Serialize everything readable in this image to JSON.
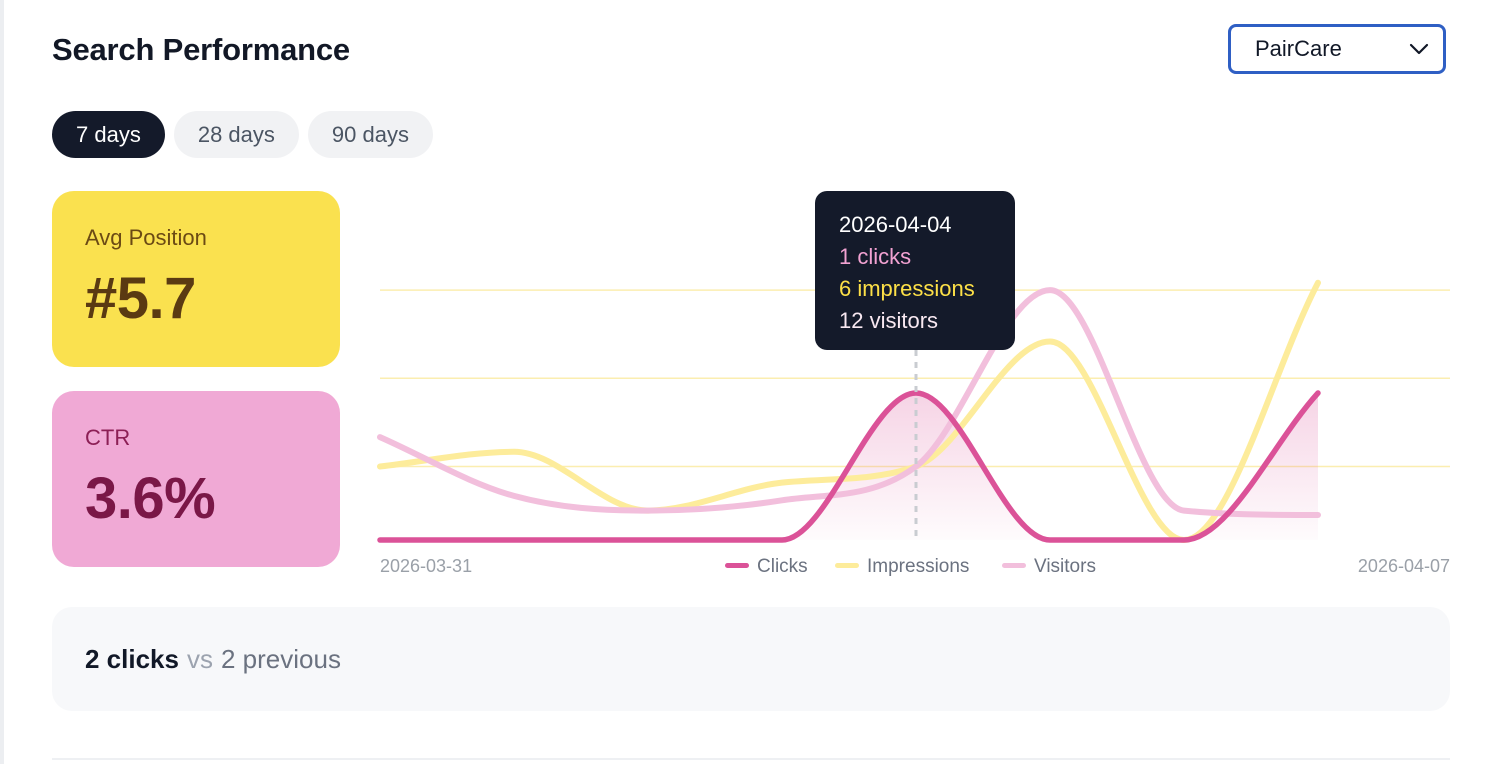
{
  "header": {
    "title": "Search Performance"
  },
  "site_select": {
    "selected": "PairCare"
  },
  "ranges": [
    {
      "label": "7 days",
      "active": true
    },
    {
      "label": "28 days",
      "active": false
    },
    {
      "label": "90 days",
      "active": false
    }
  ],
  "stats": {
    "avg_position": {
      "label": "Avg Position",
      "value": "#5.7"
    },
    "ctr": {
      "label": "CTR",
      "value": "3.6%"
    }
  },
  "tooltip": {
    "date": "2026-04-04",
    "clicks": "1 clicks",
    "impressions": "6 impressions",
    "visitors": "12 visitors"
  },
  "summary": {
    "clicks": "2 clicks",
    "vs": "vs",
    "previous": "2 previous"
  },
  "chart_data": {
    "type": "line",
    "x": [
      "2026-03-31",
      "2026-04-01",
      "2026-04-02",
      "2026-04-03",
      "2026-04-04",
      "2026-04-05",
      "2026-04-06",
      "2026-04-07"
    ],
    "x_tick_labels": [
      "2026-03-31",
      "2026-04-07"
    ],
    "hover_date": "2026-04-04",
    "ylim": [
      0,
      1.5
    ],
    "grid": true,
    "legend": "bottom-center",
    "series": [
      {
        "name": "Clicks",
        "color": "#db5298",
        "values": [
          0,
          0,
          0,
          0,
          1,
          0,
          0,
          1
        ]
      },
      {
        "name": "Impressions",
        "color": "#fdec9b",
        "values": [
          0.5,
          0.6,
          0.2,
          0.39,
          0.5,
          1.35,
          0,
          1.75
        ]
      },
      {
        "name": "Visitors",
        "color": "#f2bfdc",
        "values": [
          0.7,
          0.3,
          0.2,
          0.27,
          0.5,
          1.7,
          0.2,
          0.17
        ]
      }
    ]
  }
}
